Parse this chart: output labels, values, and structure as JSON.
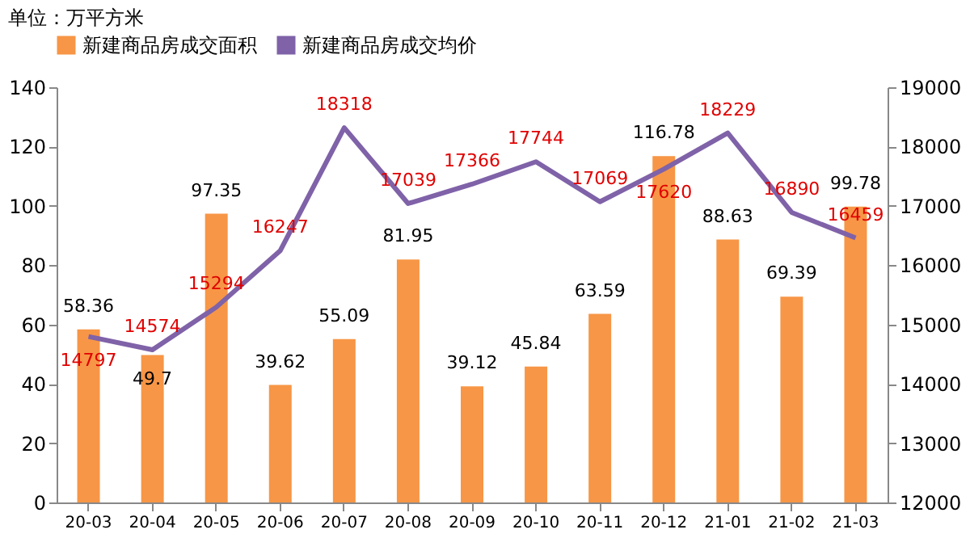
{
  "chart_data": {
    "type": "bar",
    "annotations": [
      "单位：万平方米"
    ],
    "categories": [
      "20-03",
      "20-04",
      "20-05",
      "20-06",
      "20-07",
      "20-08",
      "20-09",
      "20-10",
      "20-11",
      "20-12",
      "21-01",
      "21-02",
      "21-03"
    ],
    "series": [
      {
        "name": "新建商品房成交面积",
        "color": "#f79646",
        "values": [
          58.36,
          49.7,
          97.35,
          39.62,
          55.09,
          81.95,
          39.12,
          45.84,
          63.59,
          116.78,
          88.63,
          69.39,
          99.78
        ]
      },
      {
        "name": "新建商品房成交均价",
        "color": "#7f62a8",
        "type": "line",
        "axis": "y2",
        "values": [
          14797,
          14574,
          15294,
          16247,
          18318,
          17039,
          17366,
          17744,
          17069,
          17620,
          18229,
          16890,
          16459
        ]
      }
    ],
    "ylim": [
      0,
      140
    ],
    "yticks": [
      0,
      20,
      40,
      60,
      80,
      100,
      120,
      140
    ],
    "y2lim": [
      12000,
      19000
    ],
    "y2ticks": [
      12000,
      13000,
      14000,
      15000,
      16000,
      17000,
      18000,
      19000
    ],
    "data_labels": true,
    "legend": "top",
    "marker": "none"
  }
}
